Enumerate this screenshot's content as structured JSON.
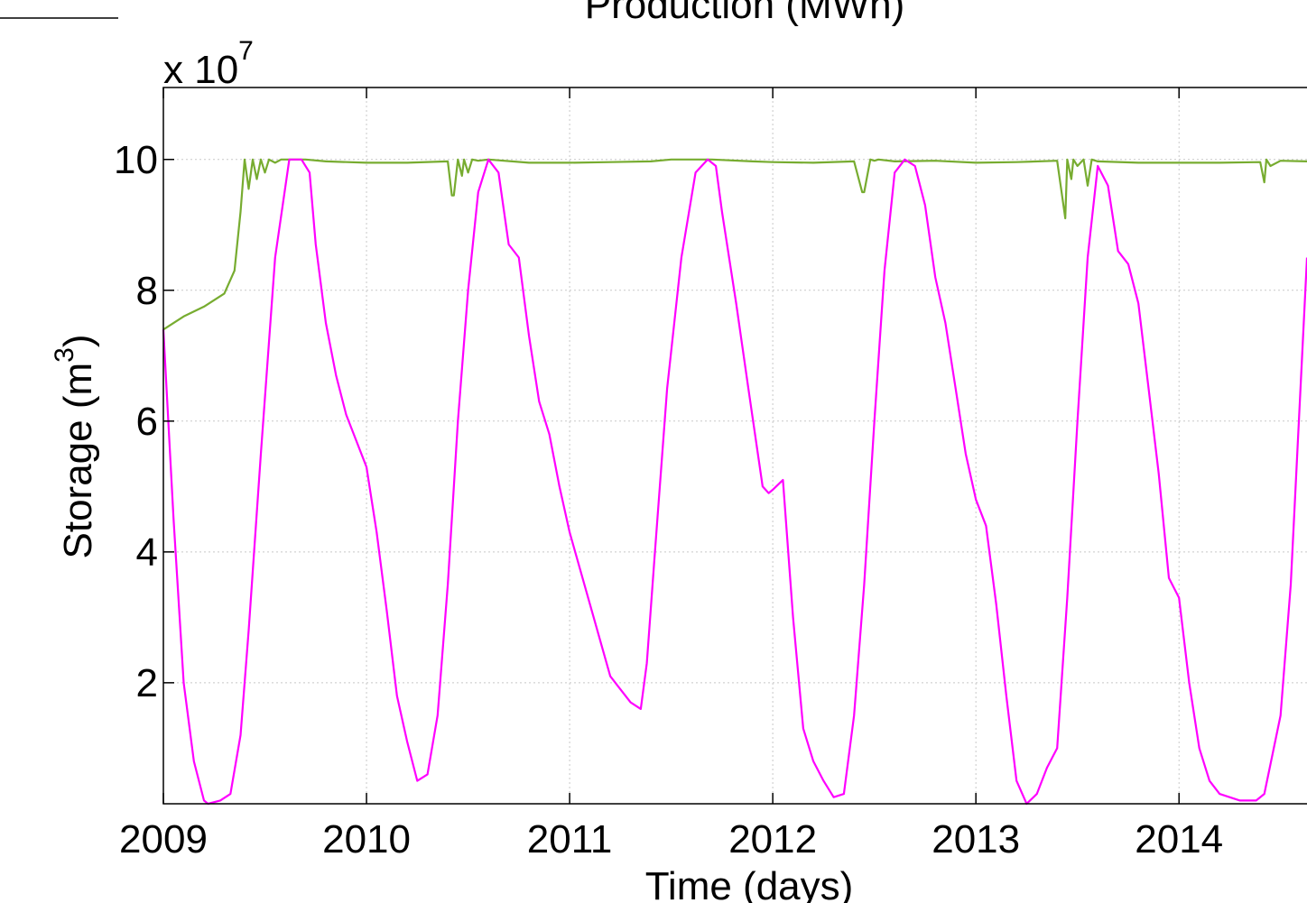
{
  "chart_data": {
    "type": "line",
    "title": "Production (MWh)",
    "xlabel": "Time (days)",
    "ylabel_main": "Storage (m",
    "ylabel_sup": "3",
    "ylabel_close": ")",
    "exponent_label": "x 10",
    "exponent_power": "7",
    "xlim": [
      2009.0,
      2014.63
    ],
    "ylim": [
      0.15,
      11.1
    ],
    "x_ticks": [
      2009,
      2010,
      2011,
      2012,
      2013,
      2014
    ],
    "x_tick_labels": [
      "2009",
      "2010",
      "2011",
      "2012",
      "2013",
      "2014"
    ],
    "y_ticks": [
      2,
      4,
      6,
      8,
      10
    ],
    "y_tick_labels": [
      "2",
      "4",
      "6",
      "8",
      "10"
    ],
    "grid": true,
    "colors": {
      "green_series": "#77ac30",
      "magenta_series": "#ff00ff"
    },
    "series": [
      {
        "color": "#77ac30",
        "x": [
          2009.0,
          2009.1,
          2009.2,
          2009.3,
          2009.35,
          2009.38,
          2009.4,
          2009.42,
          2009.44,
          2009.46,
          2009.48,
          2009.5,
          2009.52,
          2009.55,
          2009.58,
          2009.62,
          2009.7,
          2009.8,
          2010.0,
          2010.2,
          2010.4,
          2010.42,
          2010.43,
          2010.45,
          2010.47,
          2010.48,
          2010.5,
          2010.52,
          2010.55,
          2010.6,
          2010.8,
          2011.0,
          2011.2,
          2011.4,
          2011.5,
          2011.7,
          2011.9,
          2012.0,
          2012.2,
          2012.4,
          2012.44,
          2012.45,
          2012.48,
          2012.5,
          2012.52,
          2012.6,
          2012.8,
          2013.0,
          2013.2,
          2013.4,
          2013.44,
          2013.45,
          2013.47,
          2013.48,
          2013.5,
          2013.53,
          2013.55,
          2013.57,
          2013.6,
          2013.8,
          2014.0,
          2014.2,
          2014.4,
          2014.42,
          2014.43,
          2014.45,
          2014.5,
          2014.63
        ],
        "y": [
          7.4,
          7.6,
          7.75,
          7.95,
          8.3,
          9.2,
          10.0,
          9.55,
          10.0,
          9.7,
          10.0,
          9.8,
          10.0,
          9.95,
          10.0,
          10.0,
          10.0,
          9.97,
          9.95,
          9.95,
          9.97,
          9.45,
          9.45,
          10.0,
          9.75,
          10.0,
          9.8,
          10.0,
          9.98,
          10.0,
          9.95,
          9.95,
          9.96,
          9.97,
          10.0,
          10.0,
          9.97,
          9.96,
          9.95,
          9.97,
          9.5,
          9.5,
          10.0,
          9.98,
          10.0,
          9.97,
          9.98,
          9.95,
          9.96,
          9.98,
          9.1,
          10.0,
          9.7,
          10.0,
          9.9,
          10.0,
          9.6,
          10.0,
          9.97,
          9.95,
          9.95,
          9.95,
          9.96,
          9.65,
          10.0,
          9.9,
          9.98,
          9.97
        ]
      },
      {
        "color": "#ff00ff",
        "x": [
          2009.0,
          2009.05,
          2009.1,
          2009.15,
          2009.2,
          2009.22,
          2009.28,
          2009.33,
          2009.38,
          2009.42,
          2009.48,
          2009.55,
          2009.62,
          2009.68,
          2009.72,
          2009.75,
          2009.8,
          2009.85,
          2009.9,
          2010.0,
          2010.05,
          2010.1,
          2010.15,
          2010.2,
          2010.25,
          2010.3,
          2010.35,
          2010.4,
          2010.45,
          2010.5,
          2010.55,
          2010.6,
          2010.65,
          2010.7,
          2010.75,
          2010.8,
          2010.85,
          2010.9,
          2010.95,
          2011.0,
          2011.1,
          2011.2,
          2011.25,
          2011.3,
          2011.35,
          2011.38,
          2011.42,
          2011.48,
          2011.55,
          2011.62,
          2011.68,
          2011.72,
          2011.75,
          2011.82,
          2011.88,
          2011.95,
          2011.98,
          2012.0,
          2012.05,
          2012.1,
          2012.15,
          2012.2,
          2012.25,
          2012.3,
          2012.35,
          2012.4,
          2012.45,
          2012.5,
          2012.55,
          2012.6,
          2012.65,
          2012.7,
          2012.75,
          2012.8,
          2012.85,
          2012.9,
          2012.95,
          2013.0,
          2013.05,
          2013.1,
          2013.15,
          2013.2,
          2013.25,
          2013.3,
          2013.35,
          2013.4,
          2013.45,
          2013.5,
          2013.55,
          2013.6,
          2013.65,
          2013.7,
          2013.75,
          2013.8,
          2013.85,
          2013.9,
          2013.95,
          2014.0,
          2014.05,
          2014.1,
          2014.15,
          2014.2,
          2014.3,
          2014.38,
          2014.42,
          2014.5,
          2014.55,
          2014.63
        ],
        "y": [
          7.4,
          4.5,
          2.0,
          0.8,
          0.2,
          0.15,
          0.2,
          0.3,
          1.2,
          2.8,
          5.5,
          8.5,
          10.0,
          10.0,
          9.8,
          8.7,
          7.5,
          6.7,
          6.1,
          5.3,
          4.3,
          3.1,
          1.8,
          1.1,
          0.5,
          0.6,
          1.5,
          3.5,
          6.0,
          8.0,
          9.5,
          10.0,
          9.8,
          8.7,
          8.5,
          7.3,
          6.3,
          5.8,
          5.0,
          4.3,
          3.2,
          2.1,
          1.9,
          1.7,
          1.6,
          2.3,
          4.0,
          6.5,
          8.5,
          9.8,
          10.0,
          9.9,
          9.2,
          7.8,
          6.5,
          5.0,
          4.9,
          4.95,
          5.1,
          3.0,
          1.3,
          0.8,
          0.5,
          0.25,
          0.3,
          1.5,
          3.5,
          6.0,
          8.3,
          9.8,
          10.0,
          9.9,
          9.3,
          8.2,
          7.5,
          6.5,
          5.5,
          4.8,
          4.4,
          3.2,
          1.8,
          0.5,
          0.15,
          0.3,
          0.7,
          1.0,
          3.3,
          6.0,
          8.5,
          9.9,
          9.6,
          8.6,
          8.4,
          7.8,
          6.5,
          5.2,
          3.6,
          3.3,
          2.0,
          1.0,
          0.5,
          0.3,
          0.2,
          0.2,
          0.3,
          1.5,
          3.5,
          8.5
        ]
      }
    ]
  }
}
